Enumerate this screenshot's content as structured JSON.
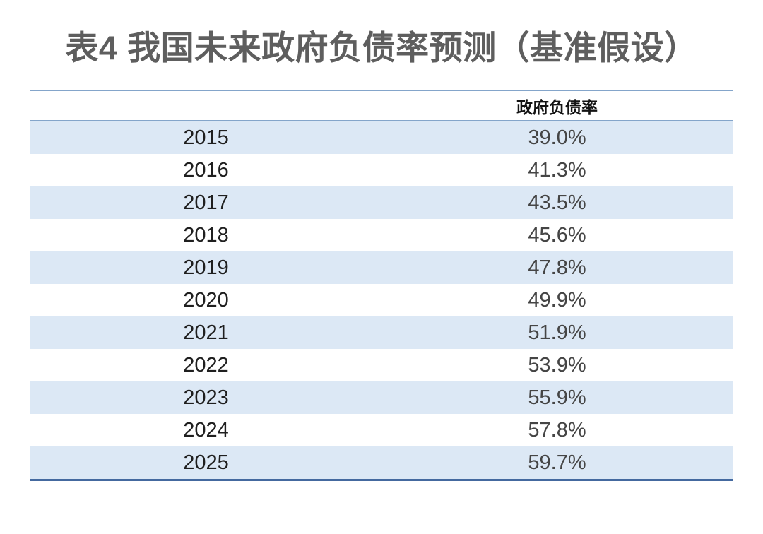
{
  "title": "表4 我国未来政府负债率预测（基准假设）",
  "table": {
    "columns": [
      "",
      "政府负债率"
    ],
    "rows": [
      {
        "year": "2015",
        "ratio": "39.0%"
      },
      {
        "year": "2016",
        "ratio": "41.3%"
      },
      {
        "year": "2017",
        "ratio": "43.5%"
      },
      {
        "year": "2018",
        "ratio": "45.6%"
      },
      {
        "year": "2019",
        "ratio": "47.8%"
      },
      {
        "year": "2020",
        "ratio": "49.9%"
      },
      {
        "year": "2021",
        "ratio": "51.9%"
      },
      {
        "year": "2022",
        "ratio": "53.9%"
      },
      {
        "year": "2023",
        "ratio": "55.9%"
      },
      {
        "year": "2024",
        "ratio": "57.8%"
      },
      {
        "year": "2025",
        "ratio": "59.7%"
      }
    ]
  },
  "colors": {
    "stripe_fill": "#dce8f5",
    "header_rule": "#84a5ca",
    "bottom_rule": "#44699f",
    "title_text": "#5e5e5e"
  }
}
